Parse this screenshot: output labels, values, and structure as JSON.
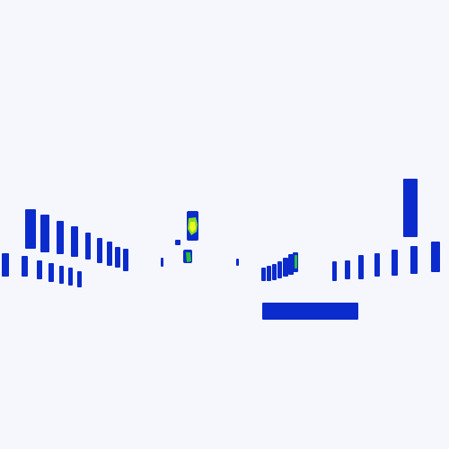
{
  "scene": {
    "background_color": "#f6f7fd",
    "object_color": "#0b2bcc",
    "heat_colors": [
      "#2bbf3a",
      "#7fe01e",
      "#d6f01a",
      "#f2f51e"
    ]
  }
}
